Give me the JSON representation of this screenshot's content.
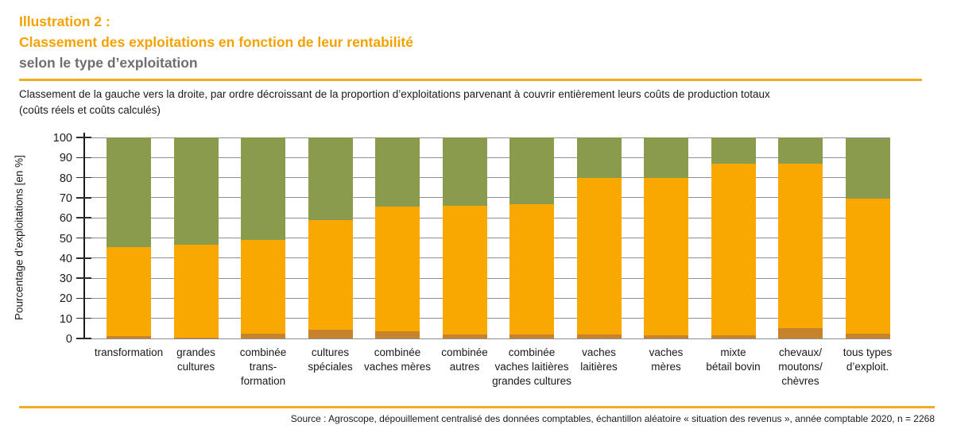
{
  "header": {
    "label": "Illustration 2 :",
    "title": "Classement des exploitations en fonction de leur rentabilité",
    "subtitle": "selon le type d’exploitation"
  },
  "description": {
    "line1": "Classement de la gauche vers la droite, par ordre décroissant de la proportion d’exploitations parvenant à couvrir entièrement leurs coûts de production totaux",
    "line2": "(coûts réels et coûts calculés)"
  },
  "theme": {
    "accent_orange": "#F5A100",
    "rule_orange": "#F3AC22",
    "subtitle_gray": "#6D6E70",
    "grid_color": "#8F8F8F",
    "axis_color": "#1A1A1A"
  },
  "chart_data": {
    "type": "bar",
    "stacked": true,
    "title": "",
    "xlabel": "",
    "ylabel": "Pourcentage d’exploitations  [en %]",
    "ylim": [
      0,
      100
    ],
    "yticks": [
      0,
      10,
      20,
      30,
      40,
      50,
      60,
      70,
      80,
      90,
      100
    ],
    "grid": true,
    "legend": "none",
    "categories": [
      [
        "transformation"
      ],
      [
        "grandes",
        "cultures"
      ],
      [
        "combinée",
        "trans-",
        "formation"
      ],
      [
        "cultures",
        "spéciales"
      ],
      [
        "combinée",
        "vaches mères"
      ],
      [
        "combinée",
        "autres"
      ],
      [
        "combinée",
        "vaches laitières",
        "grandes cultures"
      ],
      [
        "vaches",
        "laitières"
      ],
      [
        "vaches",
        "mères"
      ],
      [
        "mixte",
        "bétail bovin"
      ],
      [
        "chevaux/",
        "moutons/",
        "chèvres"
      ],
      [
        "tous types",
        "d’exploit."
      ]
    ],
    "series": [
      {
        "name": "brown-segment",
        "color": "#C7822C",
        "values": [
          1,
          0.5,
          2.5,
          4.5,
          3.5,
          2,
          2,
          2,
          1.5,
          1.5,
          5,
          2.5
        ]
      },
      {
        "name": "orange-segment",
        "color": "#F8A800",
        "values": [
          44.5,
          46,
          46.5,
          54.5,
          62,
          64,
          65,
          78,
          78.5,
          85.5,
          82,
          67
        ]
      },
      {
        "name": "green-segment",
        "color": "#8A9B4D",
        "values": [
          54.5,
          53.5,
          51,
          41,
          34.5,
          34,
          33,
          20,
          20,
          13,
          13,
          30
        ]
      }
    ]
  },
  "footer": {
    "source": "Source : Agroscope, dépouillement centralisé des données comptables, échantillon aléatoire « situation des revenus », année comptable 2020, n = 2268"
  }
}
